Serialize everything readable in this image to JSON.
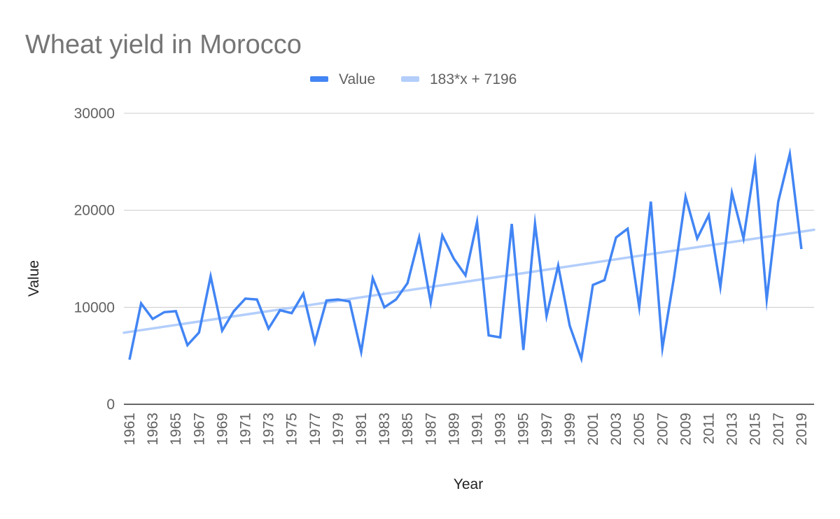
{
  "chart_data": {
    "type": "line",
    "title": "Wheat yield in Morocco",
    "xlabel": "Year",
    "ylabel": "Value",
    "ylim": [
      0,
      30000
    ],
    "y_ticks": [
      "0",
      "10000",
      "20000",
      "30000"
    ],
    "grid": true,
    "legend_position": "top",
    "x": [
      1961,
      1962,
      1963,
      1964,
      1965,
      1966,
      1967,
      1968,
      1969,
      1970,
      1971,
      1972,
      1973,
      1974,
      1975,
      1976,
      1977,
      1978,
      1979,
      1980,
      1981,
      1982,
      1983,
      1984,
      1985,
      1986,
      1987,
      1988,
      1989,
      1990,
      1991,
      1992,
      1993,
      1994,
      1995,
      1996,
      1997,
      1998,
      1999,
      2000,
      2001,
      2002,
      2003,
      2004,
      2005,
      2006,
      2007,
      2008,
      2009,
      2010,
      2011,
      2012,
      2013,
      2014,
      2015,
      2016,
      2017,
      2018,
      2019
    ],
    "x_tick_labels": [
      "1961",
      "1963",
      "1965",
      "1967",
      "1969",
      "1971",
      "1973",
      "1975",
      "1977",
      "1979",
      "1981",
      "1983",
      "1985",
      "1987",
      "1989",
      "1991",
      "1993",
      "1995",
      "1997",
      "1999",
      "2001",
      "2003",
      "2005",
      "2007",
      "2009",
      "2011",
      "2013",
      "2015",
      "2017",
      "2019"
    ],
    "series": [
      {
        "name": "Value",
        "color": "#4285f4",
        "values": [
          4600,
          10400,
          8800,
          9500,
          9600,
          6100,
          7400,
          13200,
          7600,
          9600,
          10900,
          10800,
          7800,
          9700,
          9400,
          11400,
          6400,
          10700,
          10800,
          10600,
          5400,
          13000,
          10000,
          10800,
          12500,
          17200,
          10500,
          17400,
          15000,
          13300,
          18800,
          7100,
          6900,
          18600,
          5600,
          18600,
          9100,
          14300,
          8100,
          4700,
          12300,
          12800,
          17200,
          18100,
          10000,
          20900,
          5800,
          13100,
          21400,
          17100,
          19500,
          12100,
          21800,
          17100,
          24900,
          10800,
          20900,
          25800,
          16000
        ]
      },
      {
        "name": "183*x + 7196",
        "color": "#b3cefb",
        "type": "trendline",
        "slope": 183,
        "intercept": 7196
      }
    ]
  }
}
